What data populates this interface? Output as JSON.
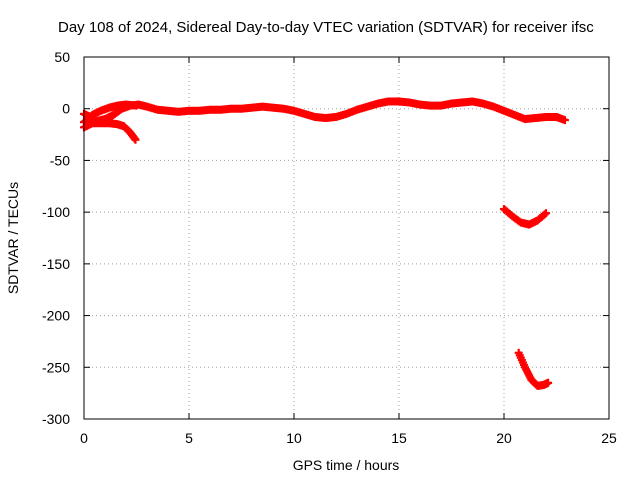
{
  "chart_data": {
    "type": "scatter",
    "title": "Day 108 of 2024, Sidereal Day-to-day VTEC variation (SDTVAR) for receiver ifsc",
    "xlabel": "GPS time / hours",
    "ylabel": "SDTVAR / TECUs",
    "xlim": [
      0,
      25
    ],
    "ylim": [
      -300,
      50
    ],
    "xticks": [
      0,
      5,
      10,
      15,
      20,
      25
    ],
    "yticks": [
      -300,
      -250,
      -200,
      -150,
      -100,
      -50,
      0,
      50
    ],
    "grid": true,
    "color": "#ff0000",
    "series": [
      {
        "values": [
          [
            0.0,
            -5
          ],
          [
            0.3,
            -8
          ],
          [
            0.6,
            -12
          ],
          [
            1.0,
            -10
          ],
          [
            1.4,
            -6
          ],
          [
            1.8,
            0
          ],
          [
            2.2,
            3
          ],
          [
            2.6,
            4
          ],
          [
            3.0,
            2
          ],
          [
            3.5,
            -1
          ],
          [
            4.0,
            -2
          ],
          [
            4.5,
            -3
          ],
          [
            5.0,
            -2
          ],
          [
            5.5,
            -2
          ],
          [
            6.0,
            -1
          ],
          [
            6.5,
            -1
          ],
          [
            7.0,
            0
          ],
          [
            7.5,
            0
          ],
          [
            8.0,
            1
          ],
          [
            8.5,
            2
          ],
          [
            9.0,
            1
          ],
          [
            9.5,
            0
          ],
          [
            10.0,
            -2
          ],
          [
            10.5,
            -5
          ],
          [
            11.0,
            -8
          ],
          [
            11.5,
            -9
          ],
          [
            12.0,
            -8
          ],
          [
            12.5,
            -5
          ],
          [
            13.0,
            -1
          ],
          [
            13.5,
            2
          ],
          [
            14.0,
            5
          ],
          [
            14.5,
            7
          ],
          [
            15.0,
            7
          ],
          [
            15.5,
            6
          ],
          [
            16.0,
            4
          ],
          [
            16.5,
            3
          ],
          [
            17.0,
            3
          ],
          [
            17.5,
            5
          ],
          [
            18.0,
            6
          ],
          [
            18.5,
            7
          ],
          [
            19.0,
            5
          ],
          [
            19.5,
            2
          ],
          [
            20.0,
            -2
          ],
          [
            20.5,
            -6
          ],
          [
            21.0,
            -10
          ],
          [
            21.5,
            -9
          ],
          [
            22.0,
            -8
          ],
          [
            22.5,
            -8
          ],
          [
            22.9,
            -11
          ]
        ]
      },
      {
        "values": [
          [
            0.0,
            -18
          ],
          [
            0.4,
            -14
          ],
          [
            0.8,
            -14
          ],
          [
            1.2,
            -14
          ],
          [
            1.6,
            -15
          ],
          [
            1.9,
            -17
          ],
          [
            2.2,
            -23
          ],
          [
            2.45,
            -30
          ]
        ]
      },
      {
        "values": [
          [
            0.0,
            -13
          ],
          [
            0.4,
            -6
          ],
          [
            0.8,
            -2
          ],
          [
            1.2,
            1
          ],
          [
            1.6,
            3
          ],
          [
            2.0,
            4
          ],
          [
            2.5,
            3
          ]
        ]
      },
      {
        "values": [
          [
            20.0,
            -97
          ],
          [
            20.4,
            -104
          ],
          [
            20.8,
            -110
          ],
          [
            21.2,
            -112
          ],
          [
            21.6,
            -108
          ],
          [
            22.0,
            -101
          ]
        ]
      },
      {
        "values": [
          [
            20.7,
            -236
          ],
          [
            21.0,
            -250
          ],
          [
            21.3,
            -262
          ],
          [
            21.6,
            -268
          ],
          [
            21.9,
            -267
          ],
          [
            22.1,
            -265
          ]
        ]
      }
    ]
  }
}
